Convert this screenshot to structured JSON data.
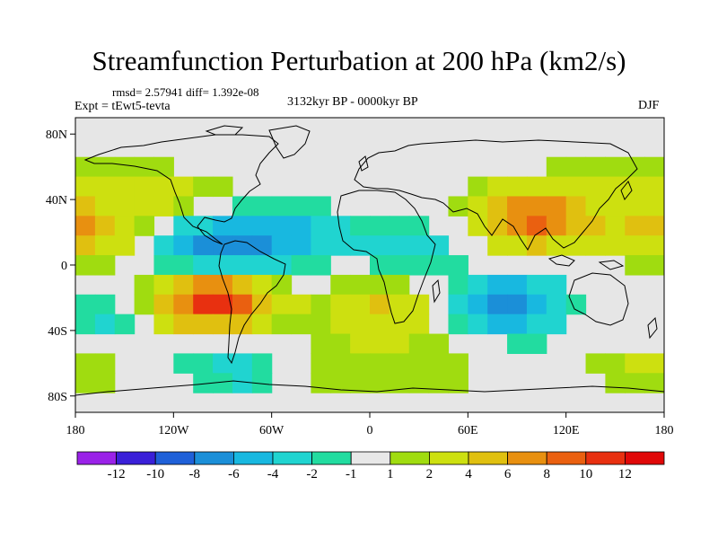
{
  "title": "Streamfunction Perturbation at 200 hPa (km2/s)",
  "stats": "rmsd= 2.57941 diff= 1.392e-08",
  "experiment": "Expt = tEwt5-tevta",
  "period": "3132kyr BP - 0000kyr BP",
  "season": "DJF",
  "latitude_labels": [
    "80N",
    "40N",
    "0",
    "40S",
    "80S"
  ],
  "longitude_labels": [
    "180",
    "120W",
    "60W",
    "0",
    "60E",
    "120E",
    "180"
  ],
  "colorbar": {
    "labels": [
      "-12",
      "-10",
      "-8",
      "-6",
      "-4",
      "-2",
      "-1",
      "1",
      "2",
      "4",
      "6",
      "8",
      "10",
      "12"
    ],
    "colors": [
      "#9a22e8",
      "#3a20d8",
      "#1f60d8",
      "#1b8fd8",
      "#18b8e0",
      "#20d4d0",
      "#22dca0",
      "#e8e8e8",
      "#a0dc10",
      "#cde010",
      "#e0c010",
      "#e89010",
      "#ea6010",
      "#e83010",
      "#e00808"
    ]
  },
  "map_data": {
    "field": "200 hPa streamfunction perturbation",
    "units": "km2/s",
    "extent": {
      "lon": [
        -180,
        180
      ],
      "lat": [
        -90,
        90
      ]
    },
    "anomalies": [
      {
        "lon": -95,
        "lat": -22,
        "value": 11
      },
      {
        "lon": -172,
        "lat": 22,
        "value": 6
      },
      {
        "lon": 100,
        "lat": 28,
        "value": 9
      },
      {
        "lon": 8,
        "lat": -28,
        "value": 4.5
      },
      {
        "lon": -100,
        "lat": 12,
        "value": -7
      },
      {
        "lon": -55,
        "lat": 18,
        "value": -5
      },
      {
        "lon": 85,
        "lat": -25,
        "value": -7
      },
      {
        "lon": -170,
        "lat": -30,
        "value": -4
      },
      {
        "lon": 25,
        "lat": 12,
        "value": -3
      },
      {
        "lon": -80,
        "lat": -62,
        "value": -3
      },
      {
        "lon": -110,
        "lat": 38,
        "value": 2.5
      },
      {
        "lon": -160,
        "lat": 55,
        "value": 1.5
      },
      {
        "lon": 140,
        "lat": 52,
        "value": 1.5
      },
      {
        "lon": 170,
        "lat": -62,
        "value": 2.5
      },
      {
        "lon": -25,
        "lat": -62,
        "value": 2
      },
      {
        "lon": 45,
        "lat": -62,
        "value": 1.5
      },
      {
        "lon": 165,
        "lat": -25,
        "value": 2.5
      }
    ]
  }
}
